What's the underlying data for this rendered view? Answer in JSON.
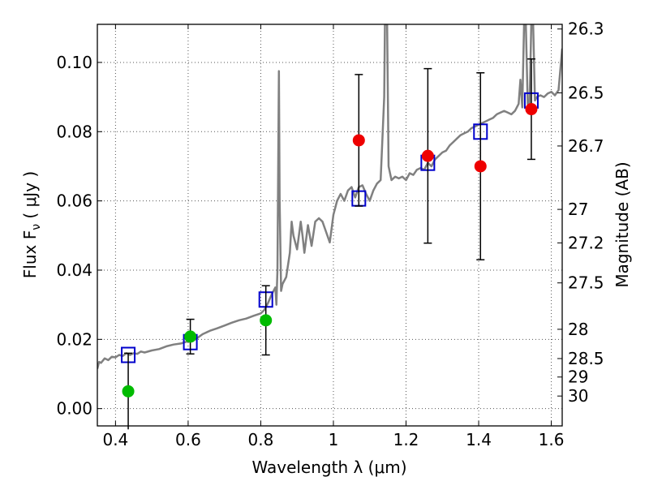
{
  "chart_data": {
    "type": "scatter",
    "xlabel": "Wavelength  λ (μm)",
    "ylabel": "Flux  F",
    "ylabel_sub": "ν",
    "ylabel_unit": " ( μJy )",
    "y2label": "Magnitude (AB)",
    "xlim": [
      0.35,
      1.63
    ],
    "ylim": [
      -0.005,
      0.111
    ],
    "grid": true,
    "x_ticks": [
      {
        "v": 0.4,
        "label": "0.4"
      },
      {
        "v": 0.6,
        "label": "0.6"
      },
      {
        "v": 0.8,
        "label": "0.8"
      },
      {
        "v": 1.0,
        "label": "1"
      },
      {
        "v": 1.2,
        "label": "1.2"
      },
      {
        "v": 1.4,
        "label": "1.4"
      },
      {
        "v": 1.6,
        "label": "1.6"
      }
    ],
    "y_ticks": [
      {
        "v": 0.0,
        "label": "0.00"
      },
      {
        "v": 0.02,
        "label": "0.02"
      },
      {
        "v": 0.04,
        "label": "0.04"
      },
      {
        "v": 0.06,
        "label": "0.06"
      },
      {
        "v": 0.08,
        "label": "0.08"
      },
      {
        "v": 0.1,
        "label": "0.10"
      }
    ],
    "mag_ticks": [
      {
        "mag": 26.3,
        "label": "26.3"
      },
      {
        "mag": 26.5,
        "label": "26.5"
      },
      {
        "mag": 26.7,
        "label": "26.7"
      },
      {
        "mag": 27,
        "label": "27"
      },
      {
        "mag": 27.2,
        "label": "27.2"
      },
      {
        "mag": 27.5,
        "label": "27.5"
      },
      {
        "mag": 28,
        "label": "28"
      },
      {
        "mag": 28.5,
        "label": "28.5"
      },
      {
        "mag": 29,
        "label": "29"
      },
      {
        "mag": 30,
        "label": "30"
      }
    ],
    "colors": {
      "model": "#808080",
      "box": "#0000cc",
      "green": "#00bb00",
      "red": "#ee0000",
      "error": "#000000",
      "grid": "#555555"
    },
    "spectrum": [
      [
        0.35,
        0.0115
      ],
      [
        0.355,
        0.0135
      ],
      [
        0.36,
        0.0132
      ],
      [
        0.37,
        0.0145
      ],
      [
        0.38,
        0.014
      ],
      [
        0.39,
        0.015
      ],
      [
        0.4,
        0.0148
      ],
      [
        0.41,
        0.0155
      ],
      [
        0.42,
        0.0152
      ],
      [
        0.43,
        0.016
      ],
      [
        0.44,
        0.0155
      ],
      [
        0.45,
        0.016
      ],
      [
        0.46,
        0.0158
      ],
      [
        0.47,
        0.0165
      ],
      [
        0.48,
        0.0162
      ],
      [
        0.5,
        0.0168
      ],
      [
        0.52,
        0.0172
      ],
      [
        0.54,
        0.018
      ],
      [
        0.56,
        0.0185
      ],
      [
        0.58,
        0.0188
      ],
      [
        0.6,
        0.0195
      ],
      [
        0.62,
        0.02
      ],
      [
        0.64,
        0.0215
      ],
      [
        0.66,
        0.0225
      ],
      [
        0.68,
        0.0232
      ],
      [
        0.7,
        0.024
      ],
      [
        0.72,
        0.0248
      ],
      [
        0.74,
        0.0255
      ],
      [
        0.76,
        0.026
      ],
      [
        0.78,
        0.0268
      ],
      [
        0.8,
        0.0275
      ],
      [
        0.81,
        0.0285
      ],
      [
        0.82,
        0.0305
      ],
      [
        0.83,
        0.033
      ],
      [
        0.84,
        0.035
      ],
      [
        0.843,
        0.03
      ],
      [
        0.846,
        0.04
      ],
      [
        0.85,
        0.0975
      ],
      [
        0.852,
        0.06
      ],
      [
        0.856,
        0.034
      ],
      [
        0.86,
        0.036
      ],
      [
        0.87,
        0.038
      ],
      [
        0.88,
        0.045
      ],
      [
        0.885,
        0.054
      ],
      [
        0.89,
        0.05
      ],
      [
        0.9,
        0.046
      ],
      [
        0.91,
        0.054
      ],
      [
        0.915,
        0.05
      ],
      [
        0.92,
        0.045
      ],
      [
        0.93,
        0.053
      ],
      [
        0.94,
        0.047
      ],
      [
        0.95,
        0.054
      ],
      [
        0.96,
        0.055
      ],
      [
        0.97,
        0.054
      ],
      [
        0.98,
        0.051
      ],
      [
        0.99,
        0.048
      ],
      [
        1.0,
        0.056
      ],
      [
        1.01,
        0.06
      ],
      [
        1.02,
        0.062
      ],
      [
        1.03,
        0.06
      ],
      [
        1.04,
        0.063
      ],
      [
        1.05,
        0.064
      ],
      [
        1.06,
        0.061
      ],
      [
        1.07,
        0.064
      ],
      [
        1.08,
        0.0645
      ],
      [
        1.09,
        0.062
      ],
      [
        1.1,
        0.06
      ],
      [
        1.11,
        0.063
      ],
      [
        1.12,
        0.065
      ],
      [
        1.13,
        0.066
      ],
      [
        1.14,
        0.09
      ],
      [
        1.142,
        0.111
      ],
      [
        1.148,
        0.111
      ],
      [
        1.152,
        0.07
      ],
      [
        1.16,
        0.066
      ],
      [
        1.17,
        0.067
      ],
      [
        1.18,
        0.0665
      ],
      [
        1.19,
        0.067
      ],
      [
        1.2,
        0.066
      ],
      [
        1.21,
        0.068
      ],
      [
        1.22,
        0.0675
      ],
      [
        1.23,
        0.069
      ],
      [
        1.24,
        0.0695
      ],
      [
        1.25,
        0.069
      ],
      [
        1.26,
        0.071
      ],
      [
        1.27,
        0.07
      ],
      [
        1.28,
        0.072
      ],
      [
        1.29,
        0.073
      ],
      [
        1.3,
        0.074
      ],
      [
        1.31,
        0.0745
      ],
      [
        1.32,
        0.076
      ],
      [
        1.33,
        0.077
      ],
      [
        1.34,
        0.078
      ],
      [
        1.35,
        0.079
      ],
      [
        1.36,
        0.0795
      ],
      [
        1.37,
        0.08
      ],
      [
        1.38,
        0.081
      ],
      [
        1.39,
        0.0815
      ],
      [
        1.4,
        0.082
      ],
      [
        1.41,
        0.0825
      ],
      [
        1.42,
        0.083
      ],
      [
        1.43,
        0.0835
      ],
      [
        1.44,
        0.084
      ],
      [
        1.45,
        0.085
      ],
      [
        1.46,
        0.0855
      ],
      [
        1.47,
        0.086
      ],
      [
        1.48,
        0.0855
      ],
      [
        1.49,
        0.085
      ],
      [
        1.5,
        0.086
      ],
      [
        1.51,
        0.088
      ],
      [
        1.515,
        0.095
      ],
      [
        1.52,
        0.087
      ],
      [
        1.525,
        0.111
      ],
      [
        1.53,
        0.111
      ],
      [
        1.535,
        0.088
      ],
      [
        1.54,
        0.087
      ],
      [
        1.545,
        0.111
      ],
      [
        1.55,
        0.111
      ],
      [
        1.555,
        0.089
      ],
      [
        1.56,
        0.09
      ],
      [
        1.57,
        0.0905
      ],
      [
        1.58,
        0.09
      ],
      [
        1.59,
        0.091
      ],
      [
        1.6,
        0.0915
      ],
      [
        1.61,
        0.0905
      ],
      [
        1.62,
        0.092
      ],
      [
        1.63,
        0.104
      ]
    ],
    "box_points": [
      {
        "x": 0.435,
        "y": 0.0155
      },
      {
        "x": 0.606,
        "y": 0.0192
      },
      {
        "x": 0.814,
        "y": 0.0315
      },
      {
        "x": 1.07,
        "y": 0.0607
      },
      {
        "x": 1.26,
        "y": 0.071
      },
      {
        "x": 1.405,
        "y": 0.08
      },
      {
        "x": 1.545,
        "y": 0.089
      }
    ],
    "photometry": [
      {
        "x": 0.435,
        "y": 0.005,
        "err": 0.011,
        "color": "green"
      },
      {
        "x": 0.606,
        "y": 0.0208,
        "err": 0.005,
        "color": "green"
      },
      {
        "x": 0.814,
        "y": 0.0255,
        "err": 0.01,
        "color": "green"
      },
      {
        "x": 1.07,
        "y": 0.0775,
        "err": 0.019,
        "color": "red"
      },
      {
        "x": 1.26,
        "y": 0.073,
        "err": 0.0252,
        "color": "red"
      },
      {
        "x": 1.405,
        "y": 0.07,
        "err": 0.027,
        "color": "red"
      },
      {
        "x": 1.545,
        "y": 0.0865,
        "err": 0.0145,
        "color": "red"
      }
    ]
  }
}
